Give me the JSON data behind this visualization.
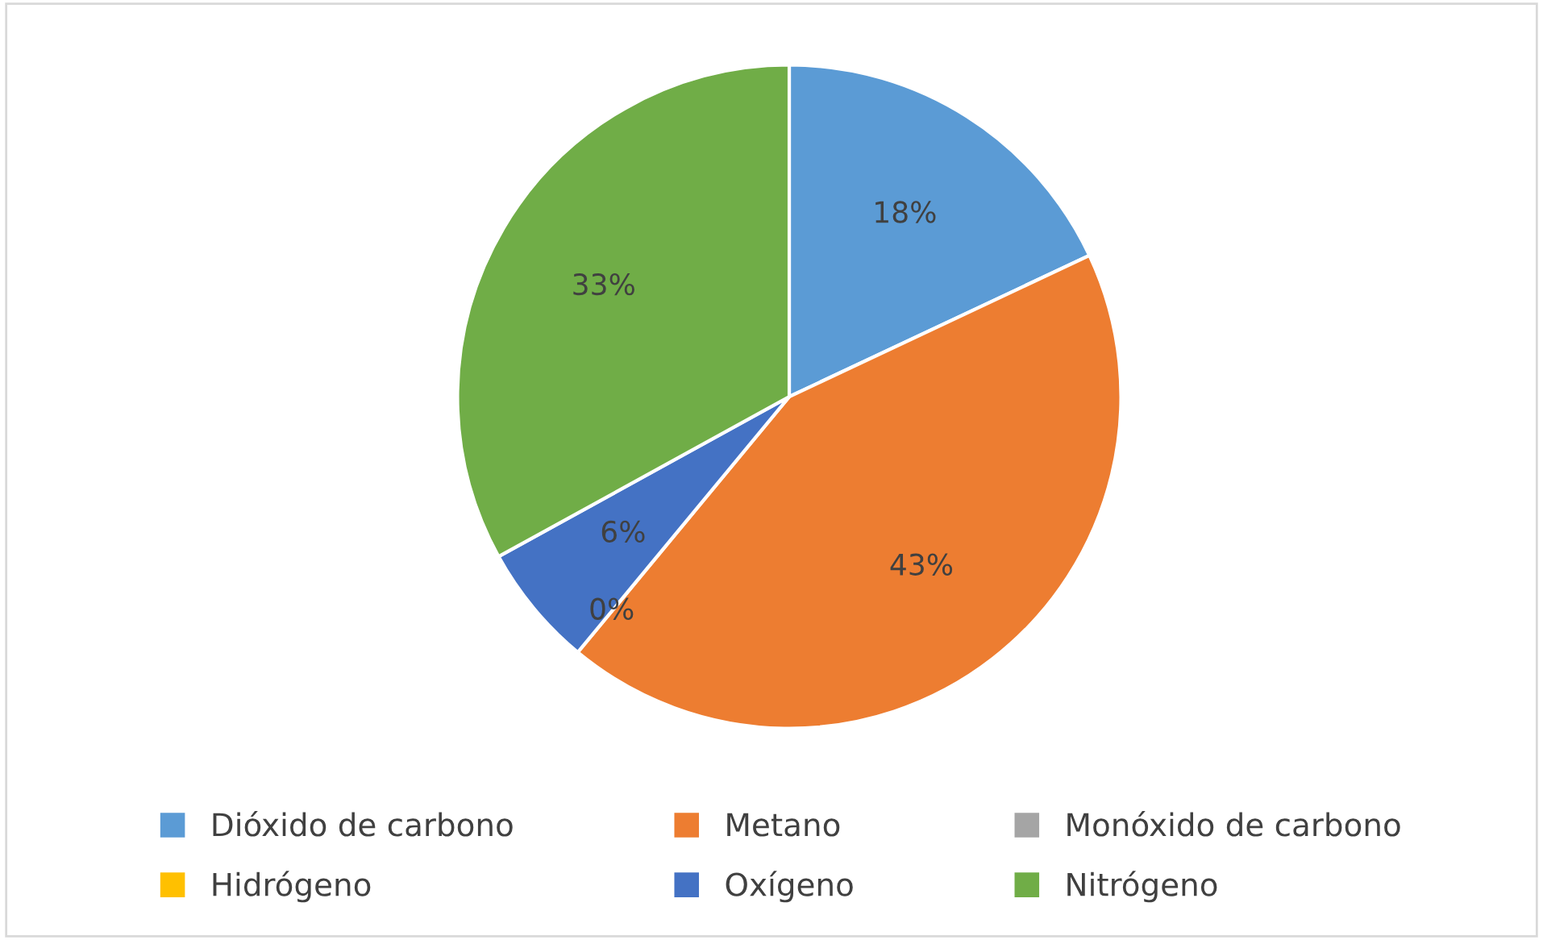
{
  "chart_data": {
    "type": "pie",
    "categories": [
      "Dióxido de carbono",
      "Metano",
      "Monóxido de carbono",
      "Hidrógeno",
      "Oxígeno",
      "Nitrógeno"
    ],
    "values": [
      18,
      43,
      0,
      0,
      6,
      33
    ],
    "colors": [
      "#5b9bd5",
      "#ed7d31",
      "#a5a5a5",
      "#ffc000",
      "#4472c4",
      "#70ad47"
    ],
    "value_labels": [
      "18%",
      "43%",
      "0%",
      null,
      "6%",
      "33%"
    ],
    "legend": "bottom"
  }
}
